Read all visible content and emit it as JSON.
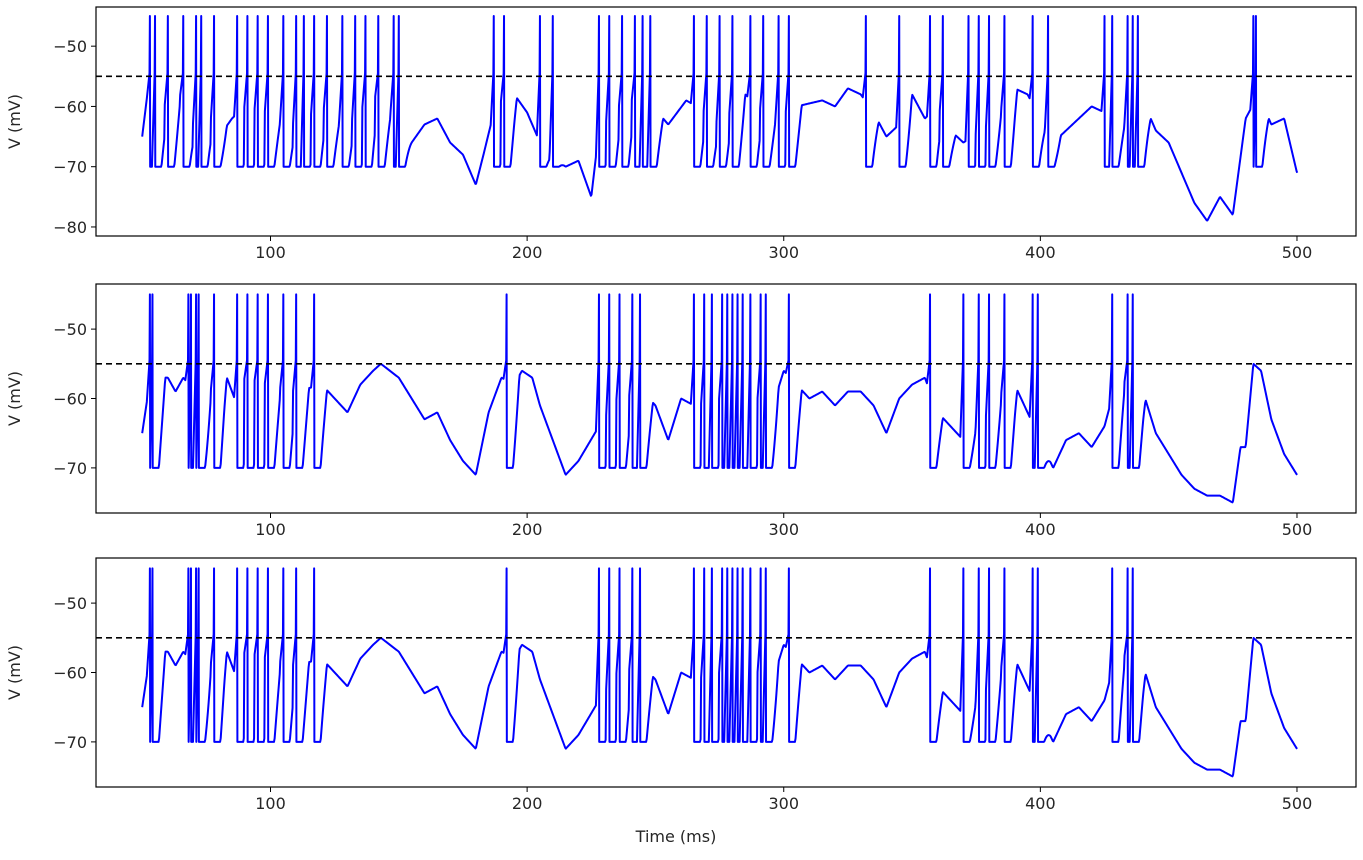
{
  "chart_data": [
    {
      "type": "line",
      "panel": "top",
      "ylabel": "V (mV)",
      "xlabel": "Time (ms)",
      "xlabel_visible": false,
      "xlim": [
        32,
        523
      ],
      "ylim": [
        -81.5,
        -43.5
      ],
      "xticks": [
        100,
        200,
        300,
        400,
        500
      ],
      "yticks": [
        -80,
        -70,
        -60,
        -50
      ],
      "threshold": -55,
      "reset": -70,
      "peak": -45,
      "series_color": "#0000ff",
      "threshold_color": "#000000",
      "grid": false,
      "spike_times": [
        53,
        55,
        60,
        66,
        71,
        73,
        78,
        87,
        91,
        95,
        99,
        105,
        110,
        113,
        117,
        122,
        128,
        133,
        137,
        142,
        148,
        150,
        187,
        191,
        205,
        210,
        228,
        232,
        237,
        242,
        245,
        248,
        265,
        270,
        275,
        280,
        287,
        292,
        298,
        302,
        332,
        345,
        357,
        362,
        372,
        376,
        380,
        386,
        397,
        403,
        425,
        428,
        434,
        436,
        438,
        483,
        484
      ],
      "subthreshold": [
        [
          50,
          -65
        ],
        [
          52,
          -58
        ],
        [
          60,
          -60
        ],
        [
          65,
          -58
        ],
        [
          70,
          -63
        ],
        [
          75,
          -60
        ],
        [
          80,
          -65
        ],
        [
          85,
          -62
        ],
        [
          90,
          -60
        ],
        [
          100,
          -61
        ],
        [
          110,
          -63
        ],
        [
          120,
          -60
        ],
        [
          130,
          -63
        ],
        [
          140,
          -58
        ],
        [
          150,
          -62
        ],
        [
          155,
          -66
        ],
        [
          160,
          -63
        ],
        [
          165,
          -62
        ],
        [
          170,
          -66
        ],
        [
          175,
          -68
        ],
        [
          180,
          -73
        ],
        [
          183,
          -68
        ],
        [
          187,
          -61
        ],
        [
          190,
          -59
        ],
        [
          195,
          -58
        ],
        [
          200,
          -61
        ],
        [
          205,
          -66
        ],
        [
          210,
          -68
        ],
        [
          215,
          -70
        ],
        [
          220,
          -69
        ],
        [
          225,
          -75
        ],
        [
          228,
          -64
        ],
        [
          235,
          -60
        ],
        [
          245,
          -58
        ],
        [
          255,
          -63
        ],
        [
          262,
          -59
        ],
        [
          270,
          -61
        ],
        [
          275,
          -63
        ],
        [
          285,
          -58
        ],
        [
          295,
          -62
        ],
        [
          305,
          -60
        ],
        [
          315,
          -59
        ],
        [
          320,
          -60
        ],
        [
          325,
          -57
        ],
        [
          330,
          -58
        ],
        [
          335,
          -61
        ],
        [
          340,
          -65
        ],
        [
          345,
          -63
        ],
        [
          350,
          -58
        ],
        [
          355,
          -62
        ],
        [
          360,
          -60
        ],
        [
          365,
          -64
        ],
        [
          370,
          -66
        ],
        [
          380,
          -63
        ],
        [
          390,
          -57
        ],
        [
          395,
          -58
        ],
        [
          400,
          -62
        ],
        [
          405,
          -66
        ],
        [
          410,
          -64
        ],
        [
          415,
          -62
        ],
        [
          420,
          -60
        ],
        [
          425,
          -61
        ],
        [
          430,
          -62
        ],
        [
          435,
          -63
        ],
        [
          440,
          -59
        ],
        [
          445,
          -64
        ],
        [
          450,
          -66
        ],
        [
          455,
          -71
        ],
        [
          460,
          -76
        ],
        [
          465,
          -79
        ],
        [
          470,
          -75
        ],
        [
          475,
          -78
        ],
        [
          480,
          -62
        ],
        [
          485,
          -58
        ],
        [
          490,
          -63
        ],
        [
          495,
          -62
        ],
        [
          500,
          -71
        ]
      ]
    },
    {
      "type": "line",
      "panel": "middle",
      "ylabel": "V (mV)",
      "xlabel": "Time (ms)",
      "xlabel_visible": false,
      "xlim": [
        32,
        523
      ],
      "ylim": [
        -76.5,
        -43.5
      ],
      "xticks": [
        100,
        200,
        300,
        400,
        500
      ],
      "yticks": [
        -70,
        -60,
        -50
      ],
      "threshold": -55,
      "reset": -70,
      "peak": -45,
      "series_color": "#0000ff",
      "threshold_color": "#000000",
      "grid": false,
      "spike_times": [
        53,
        54,
        68,
        69,
        71,
        72,
        78,
        87,
        91,
        95,
        99,
        105,
        110,
        117,
        192,
        228,
        232,
        236,
        241,
        244,
        265,
        269,
        272,
        276,
        278,
        280,
        282,
        284,
        287,
        291,
        293,
        302,
        357,
        370,
        376,
        380,
        386,
        397,
        399,
        428,
        434,
        436
      ],
      "subthreshold": [
        [
          50,
          -65
        ],
        [
          52,
          -60
        ],
        [
          55,
          -57
        ],
        [
          60,
          -57
        ],
        [
          63,
          -59
        ],
        [
          66,
          -57
        ],
        [
          75,
          -61
        ],
        [
          78,
          -57
        ],
        [
          82,
          -56
        ],
        [
          86,
          -60
        ],
        [
          90,
          -57
        ],
        [
          100,
          -58
        ],
        [
          110,
          -59
        ],
        [
          120,
          -58
        ],
        [
          125,
          -60
        ],
        [
          130,
          -62
        ],
        [
          135,
          -58
        ],
        [
          140,
          -56
        ],
        [
          143,
          -55
        ],
        [
          150,
          -57
        ],
        [
          155,
          -60
        ],
        [
          160,
          -63
        ],
        [
          165,
          -62
        ],
        [
          170,
          -66
        ],
        [
          175,
          -69
        ],
        [
          180,
          -71
        ],
        [
          185,
          -62
        ],
        [
          190,
          -57
        ],
        [
          195,
          -58
        ],
        [
          198,
          -56
        ],
        [
          202,
          -57
        ],
        [
          205,
          -61
        ],
        [
          210,
          -66
        ],
        [
          215,
          -71
        ],
        [
          220,
          -69
        ],
        [
          228,
          -64
        ],
        [
          235,
          -60
        ],
        [
          245,
          -59
        ],
        [
          250,
          -61
        ],
        [
          255,
          -66
        ],
        [
          260,
          -60
        ],
        [
          265,
          -61
        ],
        [
          275,
          -60
        ],
        [
          285,
          -58
        ],
        [
          295,
          -62
        ],
        [
          300,
          -56
        ],
        [
          305,
          -58
        ],
        [
          310,
          -60
        ],
        [
          315,
          -59
        ],
        [
          320,
          -61
        ],
        [
          325,
          -59
        ],
        [
          330,
          -59
        ],
        [
          335,
          -61
        ],
        [
          340,
          -65
        ],
        [
          345,
          -60
        ],
        [
          350,
          -58
        ],
        [
          355,
          -57
        ],
        [
          360,
          -62
        ],
        [
          365,
          -64
        ],
        [
          370,
          -66
        ],
        [
          380,
          -62
        ],
        [
          385,
          -59
        ],
        [
          390,
          -58
        ],
        [
          395,
          -62
        ],
        [
          400,
          -66
        ],
        [
          405,
          -70
        ],
        [
          410,
          -66
        ],
        [
          415,
          -65
        ],
        [
          420,
          -67
        ],
        [
          425,
          -64
        ],
        [
          430,
          -57
        ],
        [
          435,
          -58
        ],
        [
          440,
          -59
        ],
        [
          445,
          -65
        ],
        [
          450,
          -68
        ],
        [
          455,
          -71
        ],
        [
          460,
          -73
        ],
        [
          465,
          -74
        ],
        [
          470,
          -74
        ],
        [
          475,
          -75
        ],
        [
          478,
          -67
        ],
        [
          480,
          -67
        ],
        [
          483,
          -55
        ],
        [
          486,
          -56
        ],
        [
          490,
          -63
        ],
        [
          495,
          -68
        ],
        [
          500,
          -71
        ]
      ]
    },
    {
      "type": "line",
      "panel": "bottom",
      "ylabel": "V (mV)",
      "xlabel": "Time (ms)",
      "xlabel_visible": true,
      "xlim": [
        32,
        523
      ],
      "ylim": [
        -76.5,
        -43.5
      ],
      "xticks": [
        100,
        200,
        300,
        400,
        500
      ],
      "yticks": [
        -70,
        -60,
        -50
      ],
      "threshold": -55,
      "reset": -70,
      "peak": -45,
      "series_color": "#0000ff",
      "threshold_color": "#000000",
      "grid": false,
      "spike_times": [
        53,
        54,
        68,
        69,
        71,
        72,
        78,
        87,
        91,
        95,
        99,
        105,
        110,
        117,
        192,
        228,
        232,
        236,
        241,
        244,
        265,
        269,
        272,
        276,
        278,
        280,
        282,
        284,
        287,
        291,
        293,
        302,
        357,
        370,
        376,
        380,
        386,
        397,
        399,
        428,
        434,
        436
      ],
      "subthreshold": [
        [
          50,
          -65
        ],
        [
          52,
          -60
        ],
        [
          55,
          -57
        ],
        [
          60,
          -57
        ],
        [
          63,
          -59
        ],
        [
          66,
          -57
        ],
        [
          75,
          -61
        ],
        [
          78,
          -57
        ],
        [
          82,
          -56
        ],
        [
          86,
          -60
        ],
        [
          90,
          -57
        ],
        [
          100,
          -58
        ],
        [
          110,
          -59
        ],
        [
          120,
          -58
        ],
        [
          125,
          -60
        ],
        [
          130,
          -62
        ],
        [
          135,
          -58
        ],
        [
          140,
          -56
        ],
        [
          143,
          -55
        ],
        [
          150,
          -57
        ],
        [
          155,
          -60
        ],
        [
          160,
          -63
        ],
        [
          165,
          -62
        ],
        [
          170,
          -66
        ],
        [
          175,
          -69
        ],
        [
          180,
          -71
        ],
        [
          185,
          -62
        ],
        [
          190,
          -57
        ],
        [
          195,
          -58
        ],
        [
          198,
          -56
        ],
        [
          202,
          -57
        ],
        [
          205,
          -61
        ],
        [
          210,
          -66
        ],
        [
          215,
          -71
        ],
        [
          220,
          -69
        ],
        [
          228,
          -64
        ],
        [
          235,
          -60
        ],
        [
          245,
          -59
        ],
        [
          250,
          -61
        ],
        [
          255,
          -66
        ],
        [
          260,
          -60
        ],
        [
          265,
          -61
        ],
        [
          275,
          -60
        ],
        [
          285,
          -58
        ],
        [
          295,
          -62
        ],
        [
          300,
          -56
        ],
        [
          305,
          -58
        ],
        [
          310,
          -60
        ],
        [
          315,
          -59
        ],
        [
          320,
          -61
        ],
        [
          325,
          -59
        ],
        [
          330,
          -59
        ],
        [
          335,
          -61
        ],
        [
          340,
          -65
        ],
        [
          345,
          -60
        ],
        [
          350,
          -58
        ],
        [
          355,
          -57
        ],
        [
          360,
          -62
        ],
        [
          365,
          -64
        ],
        [
          370,
          -66
        ],
        [
          380,
          -62
        ],
        [
          385,
          -59
        ],
        [
          390,
          -58
        ],
        [
          395,
          -62
        ],
        [
          400,
          -66
        ],
        [
          405,
          -70
        ],
        [
          410,
          -66
        ],
        [
          415,
          -65
        ],
        [
          420,
          -67
        ],
        [
          425,
          -64
        ],
        [
          430,
          -57
        ],
        [
          435,
          -58
        ],
        [
          440,
          -59
        ],
        [
          445,
          -65
        ],
        [
          450,
          -68
        ],
        [
          455,
          -71
        ],
        [
          460,
          -73
        ],
        [
          465,
          -74
        ],
        [
          470,
          -74
        ],
        [
          475,
          -75
        ],
        [
          478,
          -67
        ],
        [
          480,
          -67
        ],
        [
          483,
          -55
        ],
        [
          486,
          -56
        ],
        [
          490,
          -63
        ],
        [
          495,
          -68
        ],
        [
          500,
          -71
        ]
      ]
    }
  ]
}
